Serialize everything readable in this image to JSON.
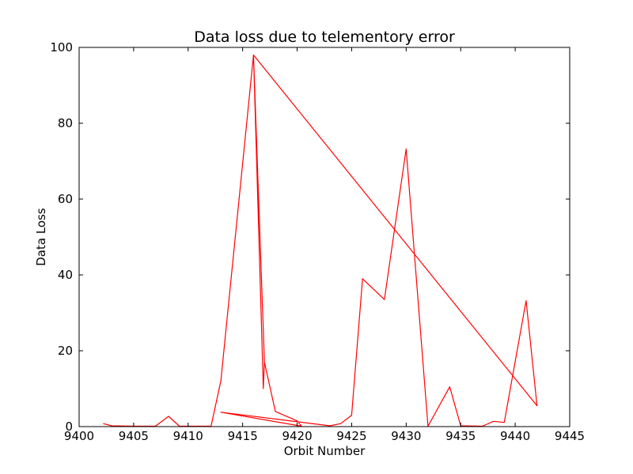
{
  "chart_data": {
    "type": "line",
    "title": "Data loss due to telementory error",
    "xlabel": "Orbit Number",
    "ylabel": "Data Loss",
    "xlim": [
      9400,
      9445
    ],
    "ylim": [
      0,
      100
    ],
    "xticks": [
      9400,
      9405,
      9410,
      9415,
      9420,
      9425,
      9430,
      9435,
      9440,
      9445
    ],
    "yticks": [
      0,
      20,
      40,
      60,
      80,
      100
    ],
    "grid": false,
    "line_color": "#ff0000",
    "series": [
      {
        "x": [
          9402.2,
          9403,
          9405,
          9407,
          9408.2,
          9409.2,
          9411,
          9412.1,
          9413,
          9416,
          9416.9,
          9417,
          9416,
          9417,
          9418,
          9420,
          9420.4,
          9413,
          9423,
          9424,
          9425,
          9426,
          9428,
          9430,
          9432,
          9434,
          9435,
          9437,
          9438,
          9439,
          9441,
          9442,
          9416
        ],
        "y": [
          0.8,
          0.2,
          0.1,
          0.1,
          2.7,
          0.1,
          0.1,
          0.1,
          12,
          98,
          10,
          17,
          98,
          17,
          4,
          1.5,
          0.1,
          3.8,
          0.2,
          0.8,
          3,
          39,
          33.5,
          73.2,
          0.1,
          10.5,
          0.2,
          0.1,
          1.4,
          1.1,
          33.2,
          5.5,
          98
        ]
      }
    ]
  }
}
